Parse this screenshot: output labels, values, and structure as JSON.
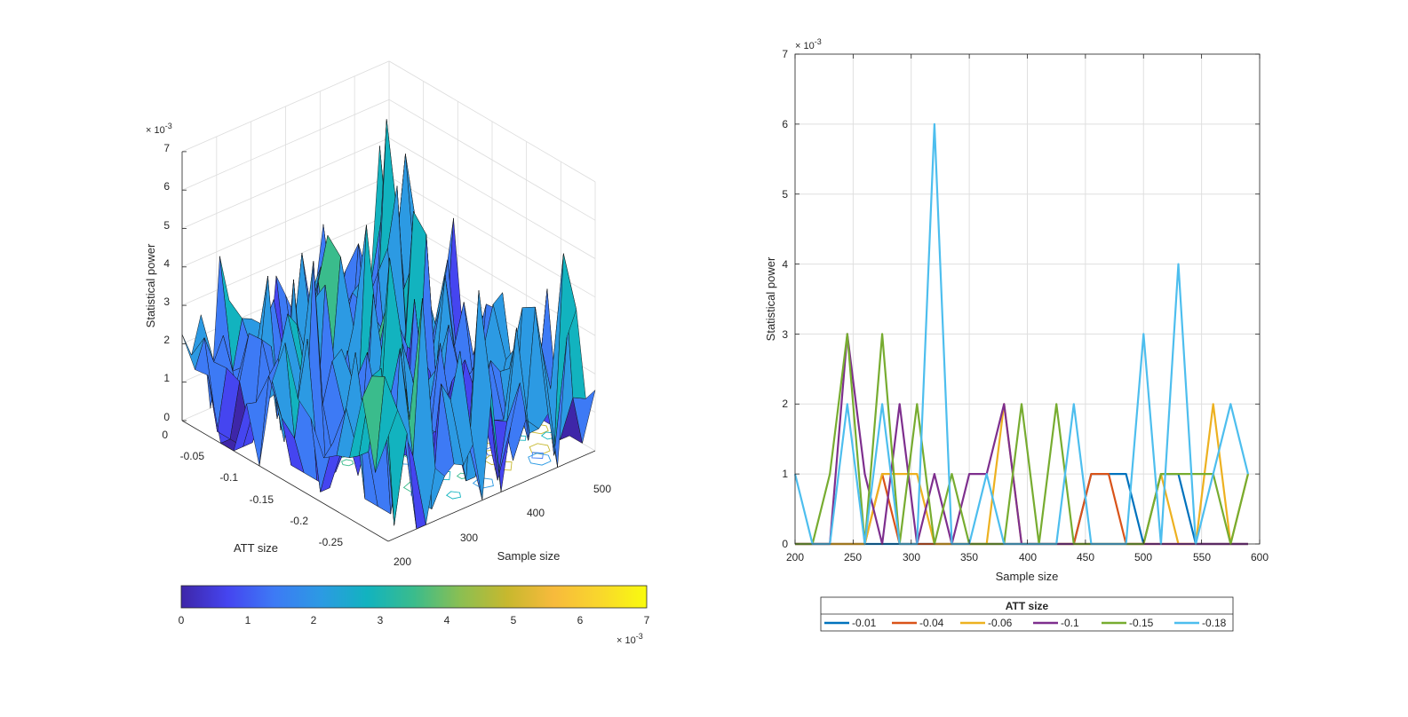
{
  "chart_data": [
    {
      "type": "surface3d",
      "zlabel": "Statistical power",
      "xlabel": "Sample size",
      "ylabel": "ATT size",
      "zlim": [
        0,
        0.007
      ],
      "z_ticks": [
        "0",
        "1",
        "2",
        "3",
        "4",
        "5",
        "6",
        "7"
      ],
      "z_exponent_base": "× 10",
      "z_exponent_power": "-3",
      "x_ticks": [
        "200",
        "300",
        "400",
        "500"
      ],
      "y_ticks": [
        "0",
        "-0.05",
        "-0.1",
        "-0.15",
        "-0.2",
        "-0.25"
      ],
      "colorbar": {
        "ticks": [
          "0",
          "1",
          "2",
          "3",
          "4",
          "5",
          "6",
          "7"
        ],
        "exponent_base": "× 10",
        "exponent_power": "-3",
        "colormap": [
          "#3e26a8",
          "#4545f0",
          "#3d7af5",
          "#2c9ae3",
          "#12b3bf",
          "#3abc8c",
          "#8bbf52",
          "#c7b82e",
          "#f7ba3c",
          "#f9d72c",
          "#f9fb0e"
        ]
      }
    },
    {
      "type": "line",
      "xlabel": "Sample size",
      "ylabel": "Statistical power",
      "xlim": [
        200,
        600
      ],
      "ylim": [
        0,
        0.007
      ],
      "x_ticks": [
        "200",
        "250",
        "300",
        "350",
        "400",
        "450",
        "500",
        "550",
        "600"
      ],
      "y_ticks": [
        "0",
        "1",
        "2",
        "3",
        "4",
        "5",
        "6",
        "7"
      ],
      "y_exponent_base": "× 10",
      "y_exponent_power": "-3",
      "grid": true,
      "legend": {
        "title": "ATT size",
        "location": "below"
      },
      "x": [
        200,
        215,
        230,
        245,
        260,
        275,
        290,
        305,
        320,
        335,
        350,
        365,
        380,
        395,
        410,
        425,
        440,
        455,
        470,
        485,
        500,
        515,
        530,
        545,
        560,
        575,
        590
      ],
      "series": [
        {
          "name": "-0.01",
          "color": "#0072bd",
          "values": [
            0,
            0,
            0,
            0,
            0,
            0,
            0,
            0,
            0,
            0,
            0,
            0,
            0,
            0,
            0,
            0,
            0,
            0.001,
            0.001,
            0.001,
            0,
            0.001,
            0.001,
            0,
            0,
            0,
            0
          ]
        },
        {
          "name": "-0.04",
          "color": "#d95319",
          "values": [
            0,
            0,
            0,
            0,
            0,
            0.001,
            0,
            0,
            0,
            0,
            0,
            0,
            0,
            0,
            0,
            0,
            0,
            0.001,
            0.001,
            0,
            0,
            0,
            0,
            0,
            0,
            0,
            0
          ]
        },
        {
          "name": "-0.06",
          "color": "#edb120",
          "values": [
            0,
            0,
            0,
            0,
            0,
            0.001,
            0.001,
            0.001,
            0,
            0,
            0,
            0,
            0.002,
            0,
            0,
            0,
            0,
            0,
            0,
            0,
            0,
            0.001,
            0,
            0,
            0.002,
            0,
            0.001
          ]
        },
        {
          "name": "-0.1",
          "color": "#7e2f8e",
          "values": [
            0,
            0,
            0,
            0.003,
            0.001,
            0,
            0.002,
            0,
            0.001,
            0,
            0.001,
            0.001,
            0.002,
            0,
            0,
            0,
            0,
            0,
            0,
            0,
            0,
            0,
            0,
            0,
            0,
            0,
            0
          ]
        },
        {
          "name": "-0.15",
          "color": "#77ac30",
          "values": [
            0,
            0,
            0.001,
            0.003,
            0,
            0.003,
            0,
            0.002,
            0,
            0.001,
            0,
            0,
            0,
            0.002,
            0,
            0.002,
            0,
            0,
            0,
            0,
            0,
            0.001,
            0.001,
            0.001,
            0.001,
            0,
            0.001
          ]
        },
        {
          "name": "-0.18",
          "color": "#4dbeee",
          "values": [
            0.001,
            0,
            0,
            0.002,
            0,
            0.002,
            0,
            0,
            0.006,
            0,
            0,
            0.001,
            0,
            0,
            0,
            0,
            0.002,
            0,
            0,
            0,
            0.003,
            0,
            0.004,
            0,
            0.001,
            0.002,
            0.001
          ]
        }
      ]
    }
  ]
}
